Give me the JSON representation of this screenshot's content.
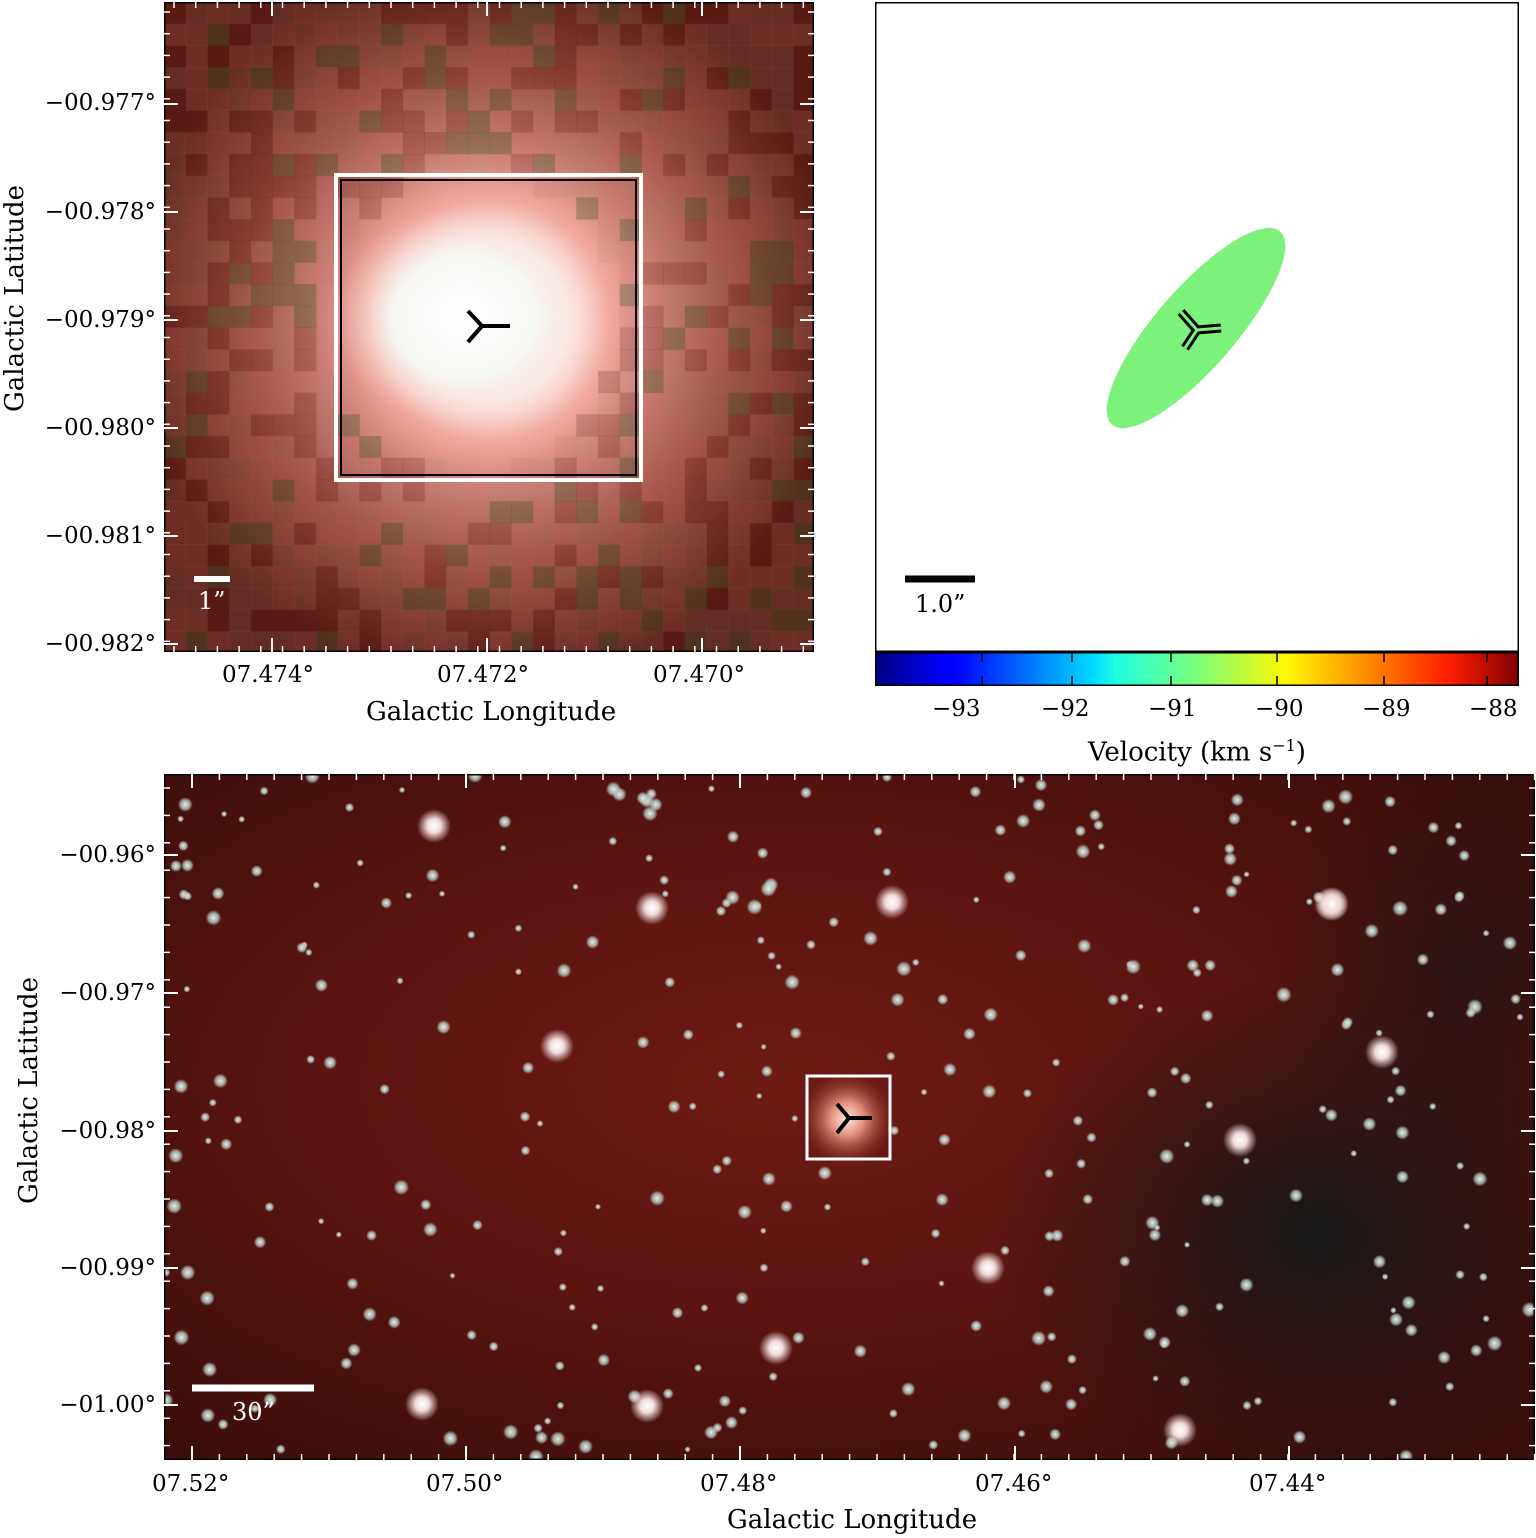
{
  "top_left_panel": {
    "x_ticks": [
      "07.474°",
      "07.472°",
      "07.470°"
    ],
    "y_ticks": [
      "−00.977°",
      "−00.978°",
      "−00.979°",
      "−00.980°",
      "−00.981°",
      "−00.982°"
    ],
    "xlabel": "Galactic Longitude",
    "ylabel": "Galactic Latitude",
    "scale_bar_label": "1”"
  },
  "top_right_panel": {
    "scale_bar_label": "1.0”",
    "ellipse_color": "#7cf27c",
    "colorbar": {
      "ticks": [
        "−93",
        "−92",
        "−91",
        "−90",
        "−89",
        "−88"
      ],
      "label": "Velocity (km s",
      "label_sup": "−1",
      "label_close": ")",
      "range": [
        -93.6,
        -87.7
      ],
      "colormap": "jet"
    }
  },
  "bottom_panel": {
    "x_ticks": [
      "07.52°",
      "07.50°",
      "07.48°",
      "07.46°",
      "07.44°"
    ],
    "y_ticks": [
      "−00.96°",
      "−00.97°",
      "−00.98°",
      "−00.99°",
      "−01.00°"
    ],
    "xlabel": "Galactic Longitude",
    "ylabel": "Galactic Latitude",
    "scale_bar_label": "30”"
  }
}
